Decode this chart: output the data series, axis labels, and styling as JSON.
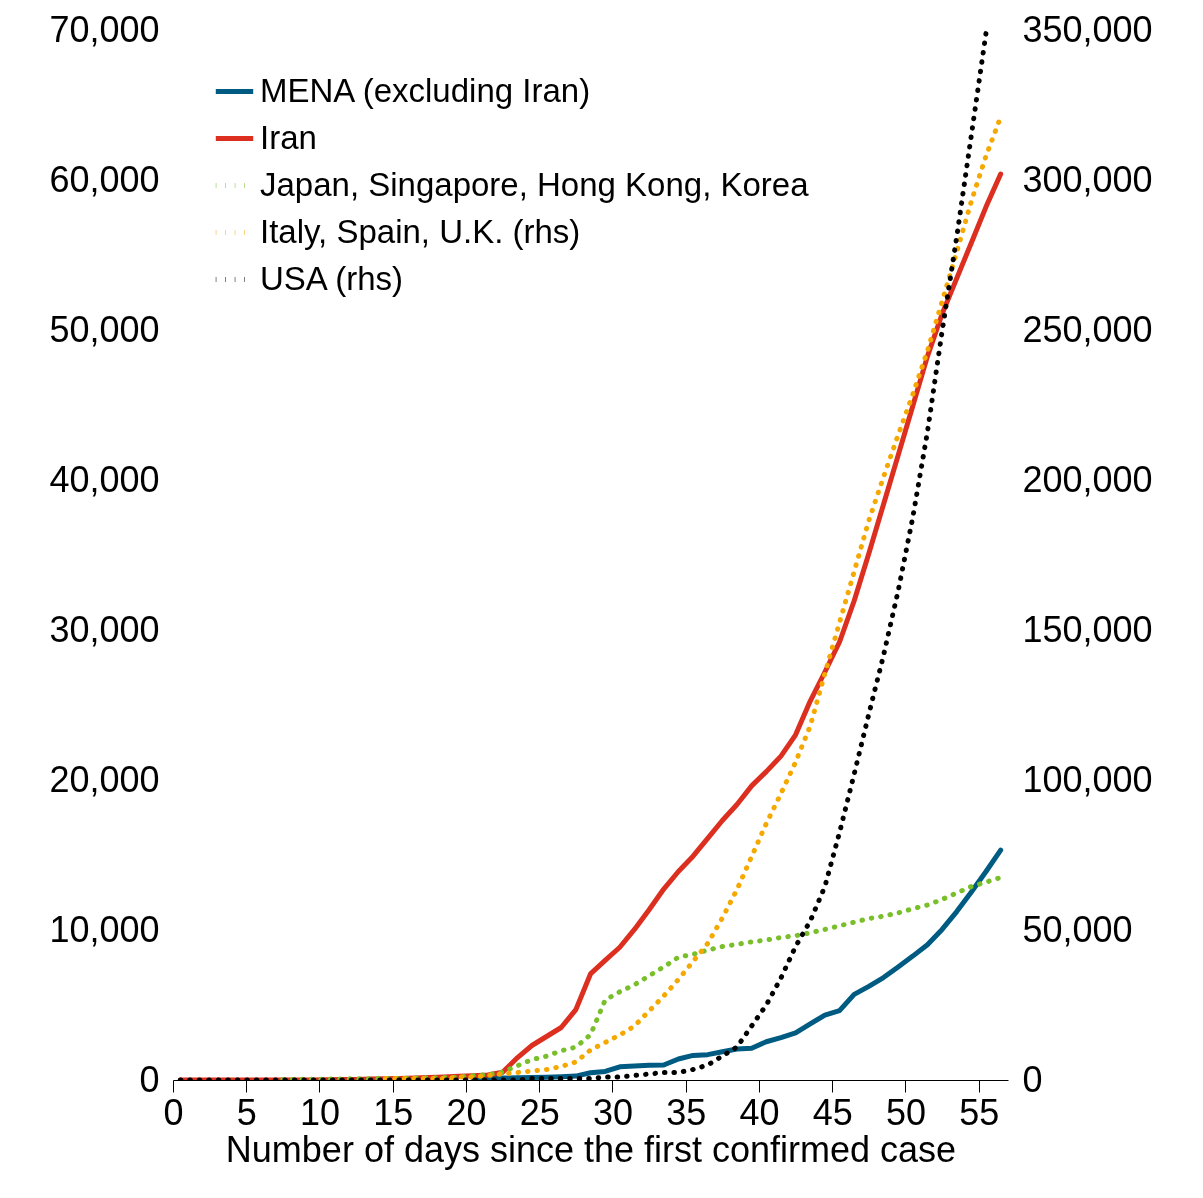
{
  "chart_data": {
    "type": "line",
    "xlabel": "Number of days since the first confirmed case",
    "x": [
      0.5,
      1.5,
      2.5,
      3.5,
      4.5,
      5.5,
      6.5,
      7.5,
      8.5,
      9.5,
      10.5,
      11.5,
      12.5,
      13.5,
      14.5,
      15.5,
      16.5,
      17.5,
      18.5,
      19.5,
      20.5,
      21.5,
      22.5,
      23.5,
      24.5,
      25.5,
      26.5,
      27.5,
      28.5,
      29.5,
      30.5,
      31.5,
      32.5,
      33.5,
      34.5,
      35.5,
      36.5,
      37.5,
      38.5,
      39.5,
      40.5,
      41.5,
      42.5,
      43.5,
      44.5,
      45.5,
      46.5,
      47.5,
      48.5,
      49.5,
      50.5,
      51.5,
      52.5,
      53.5,
      54.5,
      55.5,
      56.5
    ],
    "xlim": [
      0,
      57
    ],
    "xticks": [
      0,
      5,
      10,
      15,
      20,
      25,
      30,
      35,
      40,
      45,
      50,
      55
    ],
    "ylim": [
      0,
      70000
    ],
    "yticks": [
      0,
      {
        "value": 10000,
        "label": "10,000"
      },
      {
        "value": 20000,
        "label": "20,000"
      },
      {
        "value": 30000,
        "label": "30,000"
      },
      {
        "value": 40000,
        "label": "40,000"
      },
      {
        "value": 50000,
        "label": "50,000"
      },
      {
        "value": 60000,
        "label": "60,000"
      },
      {
        "value": 70000,
        "label": "70,000"
      }
    ],
    "y2lim": [
      0,
      350000
    ],
    "y2ticks": [
      0,
      {
        "value": 50000,
        "label": "50,000"
      },
      {
        "value": 100000,
        "label": "100,000"
      },
      {
        "value": 150000,
        "label": "150,000"
      },
      {
        "value": 200000,
        "label": "200,000"
      },
      {
        "value": 250000,
        "label": "250,000"
      },
      {
        "value": 300000,
        "label": "300,000"
      },
      {
        "value": 350000,
        "label": "350,000"
      }
    ],
    "grid": false,
    "legend": "top left",
    "series": [
      {
        "name": "MENA (excluding Iran)",
        "color": "#005b82",
        "line_style": "solid",
        "values": [
          null,
          null,
          null,
          null,
          null,
          null,
          null,
          null,
          null,
          null,
          null,
          null,
          null,
          null,
          null,
          null,
          null,
          null,
          null,
          null,
          50,
          100,
          130,
          150,
          170,
          190,
          220,
          260,
          480,
          570,
          880,
          930,
          980,
          1000,
          1400,
          1640,
          1690,
          1880,
          2070,
          2120,
          2550,
          2830,
          3140,
          3740,
          4330,
          4620,
          5710,
          6240,
          6830,
          7540,
          8260,
          9020,
          10040,
          11230,
          12540,
          13900,
          15330
        ]
      },
      {
        "name": "Iran",
        "color": "#dc2f1f",
        "line_style": "solid",
        "values": [
          0,
          0,
          0,
          0,
          0,
          0,
          0,
          0,
          0,
          0,
          20,
          30,
          40,
          60,
          80,
          100,
          130,
          160,
          200,
          250,
          280,
          330,
          520,
          1480,
          2300,
          2900,
          3500,
          4690,
          7070,
          7970,
          8850,
          10040,
          11350,
          12730,
          13900,
          14920,
          16110,
          17300,
          18370,
          19610,
          20560,
          21590,
          23010,
          25260,
          27200,
          29200,
          31950,
          35100,
          38370,
          41640,
          44930,
          48240,
          51070,
          53440,
          55820,
          58210,
          60400
        ]
      },
      {
        "name": "Japan, Singapore, Hong Kong, Korea",
        "color": "#79bf2a",
        "line_style": "dotted",
        "values": [
          null,
          null,
          null,
          null,
          null,
          null,
          null,
          30,
          40,
          50,
          60,
          70,
          80,
          90,
          100,
          110,
          130,
          150,
          170,
          200,
          290,
          360,
          520,
          950,
          1360,
          1590,
          1950,
          2190,
          3020,
          5330,
          5880,
          6350,
          6950,
          7540,
          8190,
          8380,
          8660,
          8900,
          9040,
          9210,
          9330,
          9500,
          9620,
          9810,
          10040,
          10280,
          10520,
          10760,
          10920,
          11140,
          11420,
          11660,
          12040,
          12470,
          12900,
          13190,
          13500
        ]
      },
      {
        "name": "Italy, Spain, U.K. (rhs)",
        "color": "#f5a800",
        "line_style": "dotted",
        "axis": "y2",
        "values": [
          null,
          null,
          null,
          null,
          null,
          null,
          null,
          null,
          null,
          null,
          null,
          null,
          null,
          null,
          500,
          500,
          500,
          500,
          500,
          1000,
          1000,
          1500,
          2000,
          2500,
          3000,
          3500,
          4500,
          6000,
          10000,
          12500,
          15000,
          18000,
          23000,
          28000,
          33500,
          39500,
          45500,
          54000,
          63500,
          74500,
          85500,
          95500,
          106000,
          118000,
          135500,
          152500,
          169500,
          186500,
          201000,
          215000,
          228500,
          243000,
          259500,
          276000,
          293000,
          308000,
          321000
        ]
      },
      {
        "name": "USA (rhs)",
        "color": "#000000",
        "line_style": "dotted",
        "axis": "y2",
        "values": [
          0,
          0,
          0,
          0,
          0,
          0,
          0,
          0,
          0,
          0,
          0,
          0,
          0,
          0,
          0,
          0,
          0,
          0,
          0,
          0,
          0,
          0,
          0,
          0,
          500,
          500,
          500,
          500,
          500,
          1000,
          1000,
          1500,
          2000,
          2500,
          2500,
          3500,
          5000,
          8000,
          11000,
          18000,
          25000,
          34000,
          44500,
          53000,
          64500,
          82500,
          102000,
          122000,
          141500,
          163000,
          187500,
          216000,
          249500,
          281000,
          315000,
          349000,
          null
        ]
      }
    ]
  }
}
